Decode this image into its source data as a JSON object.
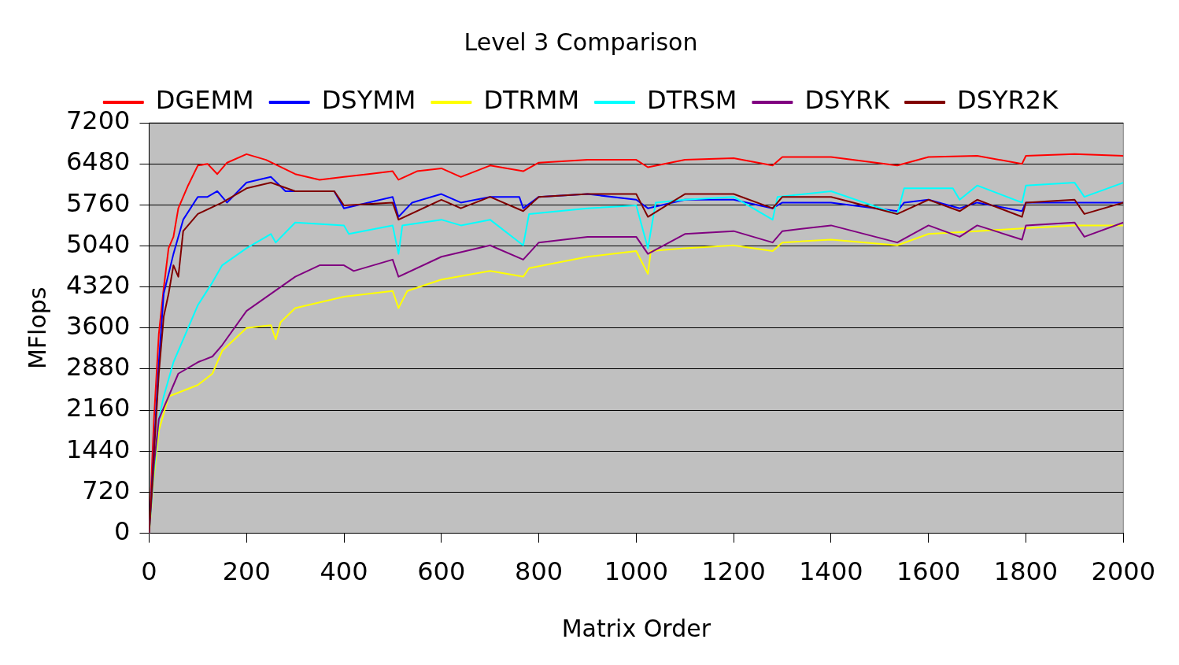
{
  "chart_data": {
    "type": "line",
    "title": "Level 3 Comparison",
    "xlabel": "Matrix Order",
    "ylabel": "MFlops",
    "xlim": [
      0,
      2000
    ],
    "xticks": [
      0,
      200,
      400,
      600,
      800,
      1000,
      1200,
      1400,
      1600,
      1800,
      2000
    ],
    "ylim": [
      0,
      7200
    ],
    "yticks": [
      0,
      720,
      1440,
      2160,
      2880,
      3600,
      4320,
      5040,
      5760,
      6480,
      7200
    ],
    "grid": "y",
    "legend": "top",
    "marker": "none",
    "line_style": "solid",
    "series": [
      {
        "name": "DGEMM",
        "color": "#ff0000",
        "x": [
          0,
          10,
          20,
          30,
          40,
          50,
          60,
          80,
          100,
          120,
          140,
          160,
          200,
          240,
          300,
          350,
          400,
          450,
          500,
          512,
          550,
          600,
          640,
          700,
          768,
          800,
          900,
          1000,
          1024,
          1100,
          1200,
          1280,
          1300,
          1400,
          1536,
          1600,
          1700,
          1792,
          1800,
          1900,
          2000
        ],
        "values": [
          0,
          2000,
          3500,
          4300,
          5000,
          5200,
          5700,
          6100,
          6450,
          6480,
          6300,
          6500,
          6650,
          6550,
          6300,
          6200,
          6250,
          6300,
          6350,
          6200,
          6350,
          6400,
          6250,
          6450,
          6350,
          6500,
          6550,
          6550,
          6420,
          6550,
          6580,
          6450,
          6600,
          6600,
          6450,
          6600,
          6620,
          6480,
          6620,
          6650,
          6620
        ]
      },
      {
        "name": "DSYMM",
        "color": "#0000ff",
        "x": [
          0,
          10,
          20,
          30,
          50,
          70,
          100,
          120,
          140,
          160,
          200,
          250,
          280,
          350,
          380,
          400,
          450,
          500,
          512,
          540,
          600,
          640,
          700,
          760,
          768,
          800,
          900,
          1000,
          1024,
          1100,
          1200,
          1280,
          1300,
          1400,
          1536,
          1550,
          1600,
          1664,
          1700,
          1792,
          1800,
          1900,
          2000
        ],
        "values": [
          0,
          1500,
          3000,
          4200,
          4900,
          5500,
          5900,
          5900,
          6000,
          5800,
          6150,
          6250,
          6000,
          6000,
          6000,
          5700,
          5800,
          5900,
          5550,
          5800,
          5950,
          5800,
          5900,
          5900,
          5700,
          5900,
          5950,
          5850,
          5700,
          5850,
          5850,
          5700,
          5800,
          5800,
          5650,
          5800,
          5850,
          5700,
          5800,
          5650,
          5800,
          5800,
          5800
        ]
      },
      {
        "name": "DTRMM",
        "color": "#ffff00",
        "x": [
          0,
          10,
          20,
          40,
          100,
          130,
          150,
          200,
          250,
          260,
          270,
          300,
          400,
          500,
          512,
          530,
          600,
          700,
          768,
          780,
          900,
          1000,
          1024,
          1030,
          1100,
          1200,
          1280,
          1300,
          1400,
          1536,
          1600,
          1700,
          1800,
          1900,
          2000
        ],
        "values": [
          0,
          1000,
          1800,
          2400,
          2600,
          2800,
          3200,
          3600,
          3650,
          3400,
          3700,
          3950,
          4150,
          4250,
          3950,
          4250,
          4450,
          4600,
          4500,
          4650,
          4850,
          4950,
          4550,
          4950,
          5000,
          5050,
          4950,
          5100,
          5150,
          5050,
          5250,
          5300,
          5350,
          5400,
          5400
        ]
      },
      {
        "name": "DTRSM",
        "color": "#00ffff",
        "x": [
          0,
          10,
          20,
          30,
          50,
          80,
          100,
          130,
          150,
          200,
          250,
          260,
          300,
          400,
          410,
          500,
          512,
          520,
          600,
          640,
          700,
          768,
          780,
          900,
          1000,
          1024,
          1040,
          1100,
          1200,
          1280,
          1290,
          1400,
          1536,
          1550,
          1650,
          1664,
          1700,
          1792,
          1800,
          1900,
          1920,
          2000
        ],
        "values": [
          0,
          1100,
          2000,
          2400,
          3000,
          3600,
          4000,
          4400,
          4700,
          5000,
          5250,
          5100,
          5450,
          5400,
          5250,
          5400,
          4900,
          5400,
          5500,
          5400,
          5500,
          5050,
          5600,
          5700,
          5750,
          5000,
          5800,
          5850,
          5900,
          5500,
          5900,
          6000,
          5600,
          6050,
          6050,
          5850,
          6100,
          5800,
          6100,
          6150,
          5900,
          6150
        ]
      },
      {
        "name": "DSYRK",
        "color": "#800080",
        "x": [
          0,
          10,
          20,
          40,
          60,
          100,
          130,
          150,
          200,
          250,
          300,
          350,
          400,
          420,
          500,
          512,
          600,
          700,
          768,
          800,
          900,
          1000,
          1024,
          1100,
          1200,
          1280,
          1300,
          1400,
          1536,
          1600,
          1664,
          1700,
          1792,
          1800,
          1900,
          1920,
          2000
        ],
        "values": [
          0,
          1200,
          2000,
          2400,
          2800,
          3000,
          3100,
          3300,
          3900,
          4200,
          4500,
          4700,
          4700,
          4600,
          4800,
          4500,
          4850,
          5050,
          4800,
          5100,
          5200,
          5200,
          4900,
          5250,
          5300,
          5100,
          5300,
          5400,
          5100,
          5400,
          5200,
          5400,
          5150,
          5400,
          5450,
          5200,
          5450
        ]
      },
      {
        "name": "DSYR2K",
        "color": "#800000",
        "x": [
          0,
          10,
          20,
          30,
          40,
          50,
          60,
          70,
          100,
          150,
          200,
          250,
          300,
          380,
          400,
          500,
          512,
          600,
          640,
          700,
          768,
          800,
          900,
          1000,
          1024,
          1100,
          1200,
          1280,
          1300,
          1400,
          1536,
          1600,
          1664,
          1700,
          1792,
          1800,
          1900,
          1920,
          2000
        ],
        "values": [
          0,
          1400,
          2800,
          3800,
          4200,
          4700,
          4500,
          5300,
          5600,
          5800,
          6050,
          6150,
          6000,
          6000,
          5750,
          5800,
          5500,
          5850,
          5700,
          5900,
          5650,
          5900,
          5950,
          5950,
          5550,
          5950,
          5950,
          5700,
          5900,
          5900,
          5600,
          5850,
          5650,
          5850,
          5550,
          5800,
          5850,
          5600,
          5800
        ]
      }
    ]
  }
}
